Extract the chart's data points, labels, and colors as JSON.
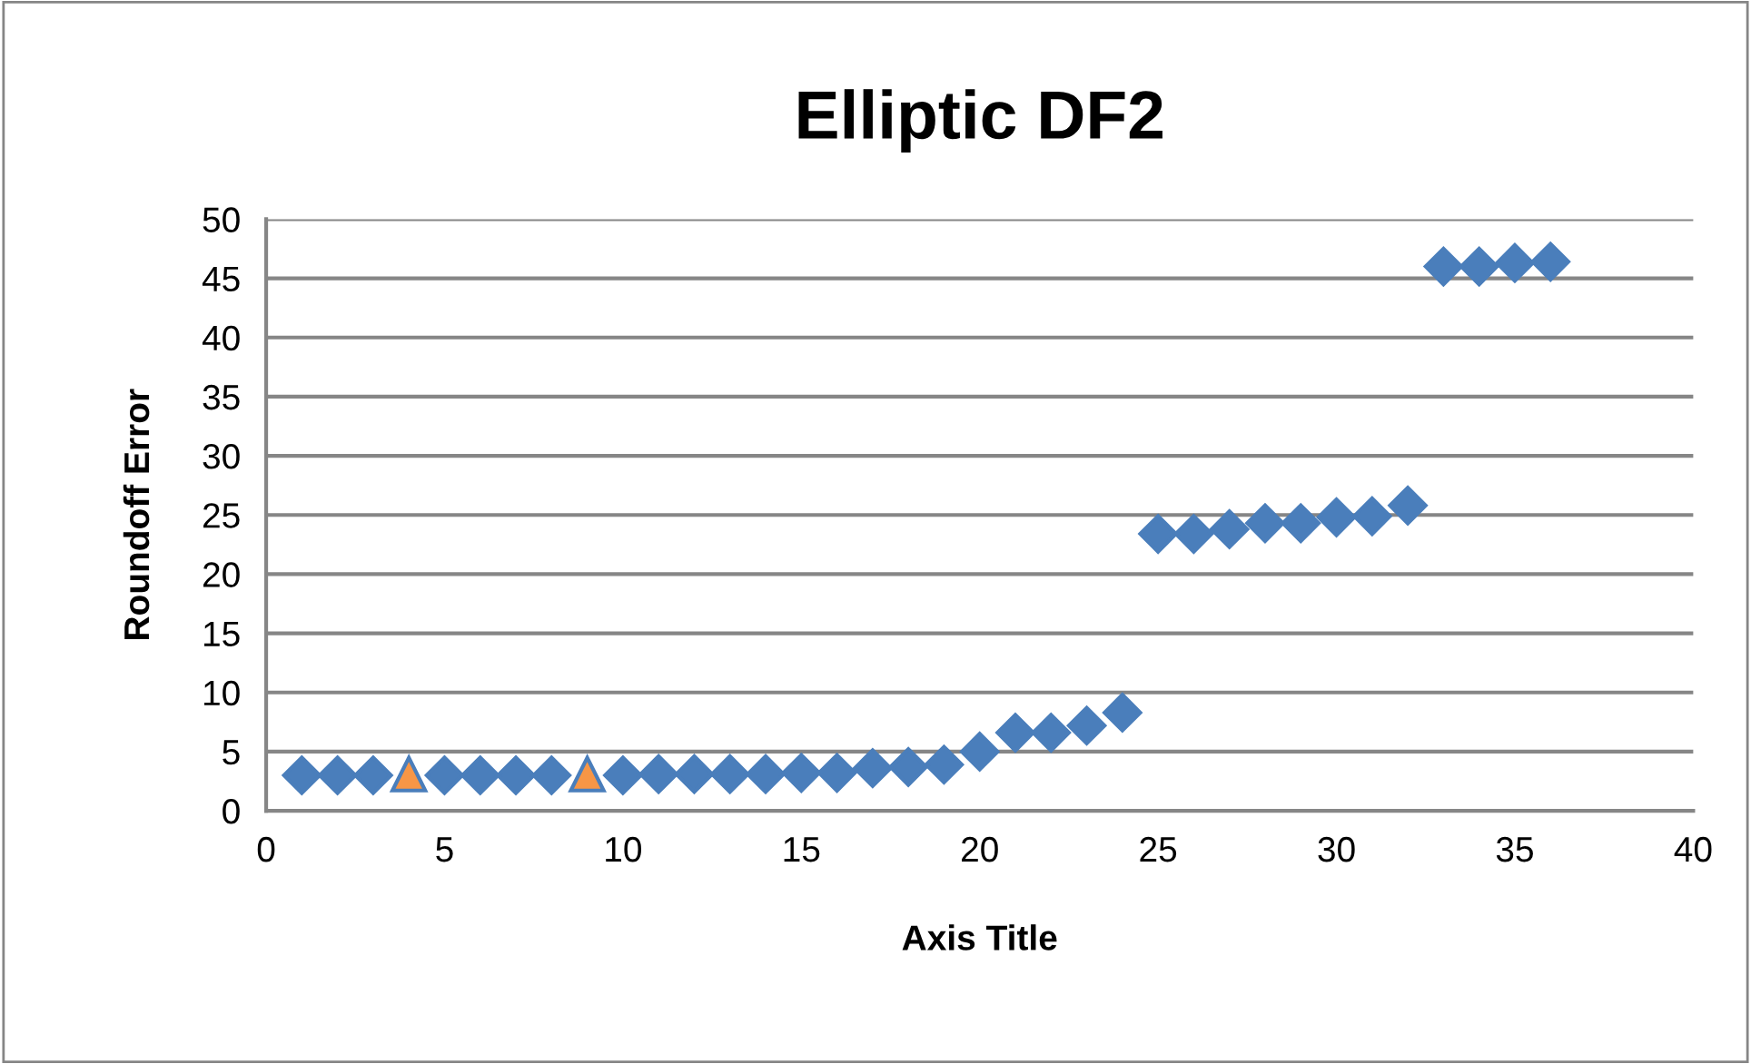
{
  "chart_data": {
    "type": "scatter",
    "title": "Elliptic DF2",
    "xlabel": "Axis Title",
    "ylabel": "Roundoff Error",
    "series": [
      {
        "color": "#4a7ebb",
        "marker": "diamond",
        "x": [
          1,
          2,
          3,
          5,
          6,
          7,
          8,
          10,
          11,
          12,
          13,
          14,
          15,
          16,
          17,
          18,
          19,
          20,
          21,
          22,
          23,
          24,
          25,
          26,
          27,
          28,
          29,
          30,
          31,
          32,
          33,
          34,
          35,
          36
        ],
        "values": [
          3.0,
          3.0,
          3.0,
          3.0,
          3.0,
          3.0,
          3.0,
          3.0,
          3.1,
          3.1,
          3.1,
          3.1,
          3.2,
          3.2,
          3.6,
          3.7,
          3.9,
          5.0,
          6.6,
          6.6,
          7.2,
          8.3,
          23.4,
          23.4,
          23.8,
          24.3,
          24.3,
          24.8,
          24.9,
          25.8,
          46.0,
          46.0,
          46.3,
          46.4
        ]
      },
      {
        "color": "#f79646",
        "marker": "triangle",
        "x": [
          4,
          9
        ],
        "values": [
          3.1,
          3.1
        ]
      }
    ],
    "xlim": [
      0,
      40
    ],
    "xticks": [
      0,
      5,
      10,
      15,
      20,
      25,
      30,
      35,
      40
    ],
    "ylim": [
      0,
      50
    ],
    "yticks": [
      0,
      5,
      10,
      15,
      20,
      25,
      30,
      35,
      40,
      45,
      50
    ],
    "grid": "y"
  }
}
